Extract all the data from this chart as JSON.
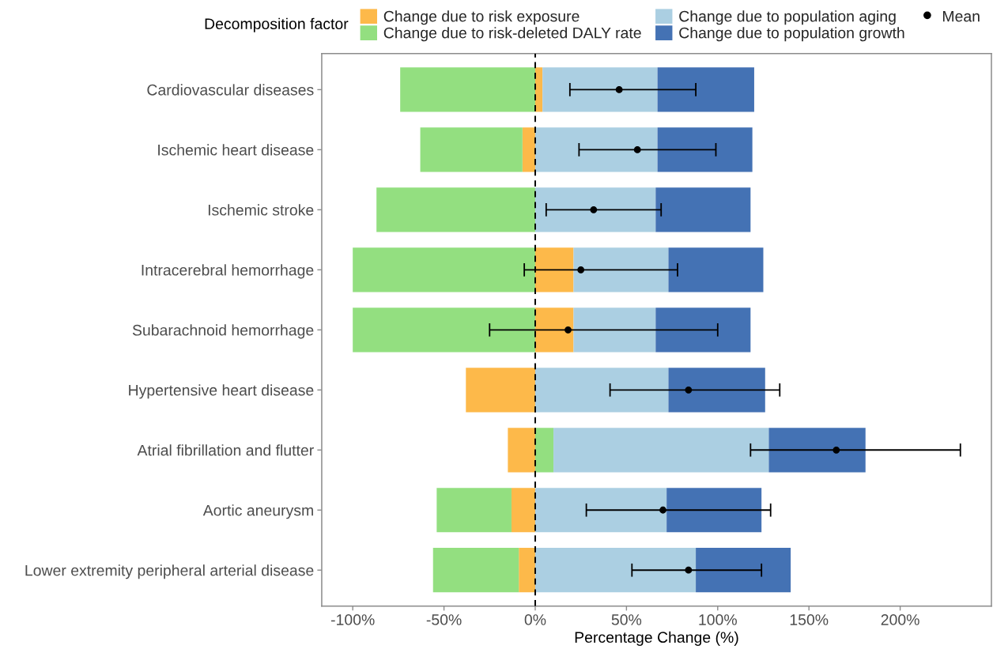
{
  "chart_data": {
    "type": "bar",
    "orientation": "horizontal",
    "stacked": true,
    "xlabel": "Percentage Change (%)",
    "legend_title": "Decomposition factor",
    "categories": [
      "Cardiovascular diseases",
      "Ischemic heart disease",
      "Ischemic stroke",
      "Intracerebral hemorrhage",
      "Subarachnoid hemorrhage",
      "Hypertensive heart disease",
      "Atrial fibrillation and flutter",
      "Aortic aneurysm",
      "Lower extremity peripheral arterial disease"
    ],
    "series": [
      {
        "name": "Change due to risk exposure",
        "color": "#fdb94a",
        "values": [
          4,
          -7,
          null,
          21,
          21,
          -38,
          -15,
          -13,
          -9
        ]
      },
      {
        "name": "Change due to risk-deleted DALY rate",
        "color": "#93df80",
        "values": [
          -74,
          -56,
          -87,
          -100,
          -100,
          null,
          10,
          -41,
          -47
        ]
      },
      {
        "name": "Change due to population aging",
        "color": "#abcfe2",
        "values": [
          63,
          67,
          66,
          52,
          45,
          73,
          118,
          72,
          88
        ]
      },
      {
        "name": "Change due to population growth",
        "color": "#4472b4",
        "values": [
          53,
          52,
          52,
          52,
          52,
          53,
          53,
          52,
          52
        ]
      },
      {
        "name": "Mean",
        "type": "scatter",
        "color": "#000000",
        "values": [
          46,
          56,
          32,
          25,
          18,
          84,
          165,
          70,
          84
        ],
        "errors": [
          [
            19,
            88
          ],
          [
            24,
            99
          ],
          [
            6,
            69
          ],
          [
            -6,
            78
          ],
          [
            -25,
            100
          ],
          [
            41,
            134
          ],
          [
            118,
            233
          ],
          [
            28,
            129
          ],
          [
            53,
            124
          ]
        ]
      }
    ],
    "xlim": [
      -117,
      250
    ],
    "xticks": [
      {
        "value": -100,
        "label": "-100%"
      },
      {
        "value": -50,
        "label": "-50%"
      },
      {
        "value": 0,
        "label": "0%"
      },
      {
        "value": 50,
        "label": "50%"
      },
      {
        "value": 100,
        "label": "100%"
      },
      {
        "value": 150,
        "label": "150%"
      },
      {
        "value": 200,
        "label": "200%"
      }
    ],
    "ref_lines": [
      {
        "axis": "x",
        "value": 0,
        "color": "#000000",
        "line_style": "dashed"
      }
    ],
    "legend": "top",
    "marker": "circle"
  }
}
